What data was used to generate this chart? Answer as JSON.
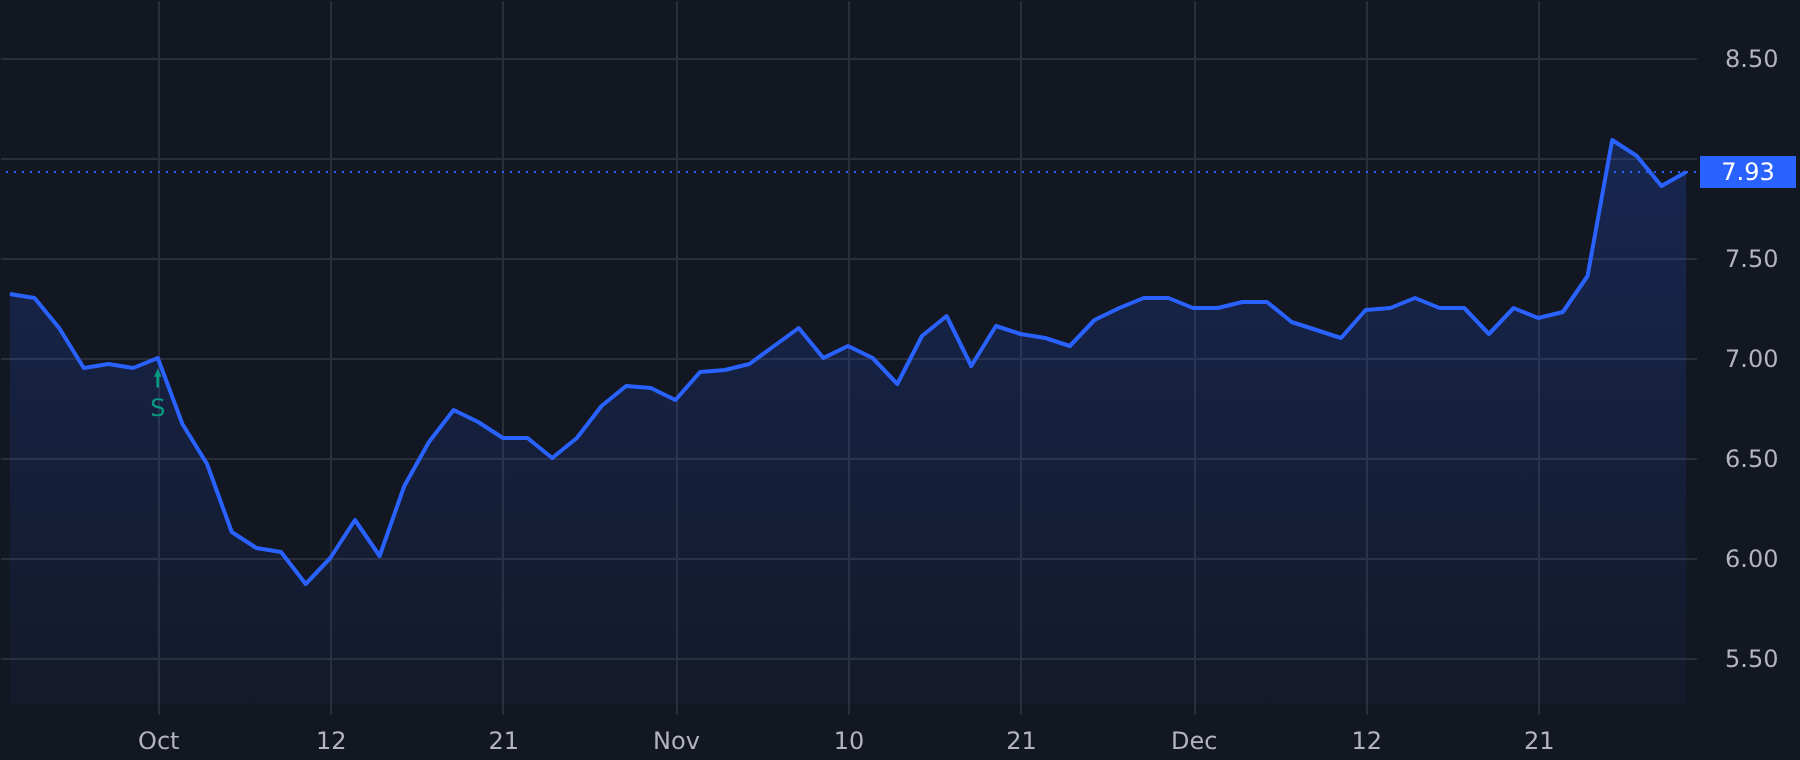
{
  "chart_data": {
    "type": "area",
    "categories": [
      null,
      null,
      null,
      null,
      null,
      null,
      "Oct",
      null,
      null,
      null,
      null,
      null,
      null,
      "12",
      null,
      null,
      null,
      null,
      null,
      null,
      "21",
      null,
      null,
      null,
      null,
      null,
      null,
      "Nov",
      null,
      null,
      null,
      null,
      null,
      null,
      "10",
      null,
      null,
      null,
      null,
      null,
      null,
      "21",
      null,
      null,
      null,
      null,
      null,
      null,
      "Dec",
      null,
      null,
      null,
      null,
      null,
      null,
      "12",
      null,
      null,
      null,
      null,
      null,
      null,
      "21",
      null,
      null,
      null,
      null,
      null,
      null
    ],
    "series": [
      {
        "color": "#2962ff",
        "values": [
          7.32,
          7.3,
          7.15,
          6.95,
          6.97,
          6.95,
          7.0,
          6.67,
          6.47,
          6.13,
          6.05,
          6.03,
          5.87,
          6.0,
          6.19,
          6.01,
          6.36,
          6.58,
          6.74,
          6.68,
          6.6,
          6.6,
          6.5,
          6.6,
          6.76,
          6.86,
          6.85,
          6.79,
          6.93,
          6.94,
          6.97,
          7.06,
          7.15,
          7.0,
          7.06,
          7.0,
          6.87,
          7.11,
          7.21,
          6.96,
          7.16,
          7.12,
          7.1,
          7.06,
          7.19,
          7.25,
          7.3,
          7.3,
          7.25,
          7.25,
          7.28,
          7.28,
          7.18,
          7.14,
          7.1,
          7.24,
          7.25,
          7.3,
          7.25,
          7.25,
          7.12,
          7.25,
          7.2,
          7.23,
          7.41,
          8.09,
          8.01,
          7.86,
          7.93
        ]
      }
    ],
    "ylim": [
      5.27,
      8.79
    ],
    "yticks": [
      {
        "value": 5.5,
        "label": "5.50"
      },
      {
        "value": 6,
        "label": "6.00"
      },
      {
        "value": 6.5,
        "label": "6.50"
      },
      {
        "value": 7,
        "label": "7.00"
      },
      {
        "value": 7.5,
        "label": "7.50"
      },
      {
        "value": 8,
        "label": null
      },
      {
        "value": 8.5,
        "label": "8.50"
      }
    ],
    "ref_lines": [
      {
        "axis": "y",
        "value": 7.93,
        "label": "7.93",
        "color": "#2962ff",
        "line_style": "dotted"
      }
    ],
    "annotations": [
      {
        "text": "S",
        "x": "Oct",
        "y": 7.0
      }
    ],
    "grid": true
  }
}
